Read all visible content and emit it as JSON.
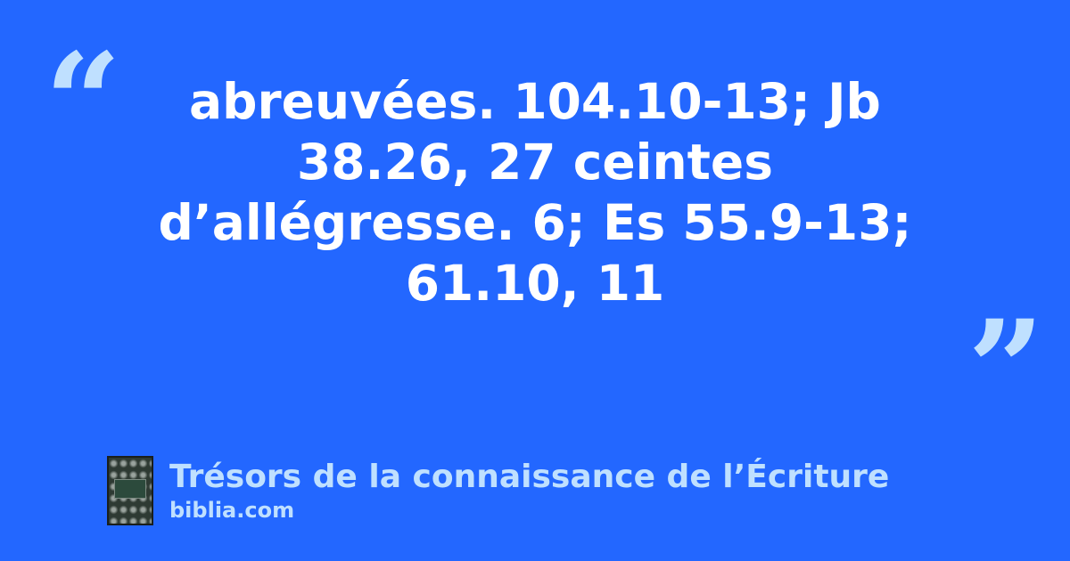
{
  "quote": {
    "open_mark": "“",
    "close_mark": "”",
    "text": "abreuvées. 104.10-13; Jb 38.26, 27 ceintes d’allégresse. 6; Es 55.9-13; 61.10, 11"
  },
  "source": {
    "title": "Trésors de la connaissance de l’Écriture",
    "site": "biblia.com"
  },
  "colors": {
    "background": "#2367ff",
    "accent": "#bfe0ff",
    "text": "#ffffff"
  }
}
